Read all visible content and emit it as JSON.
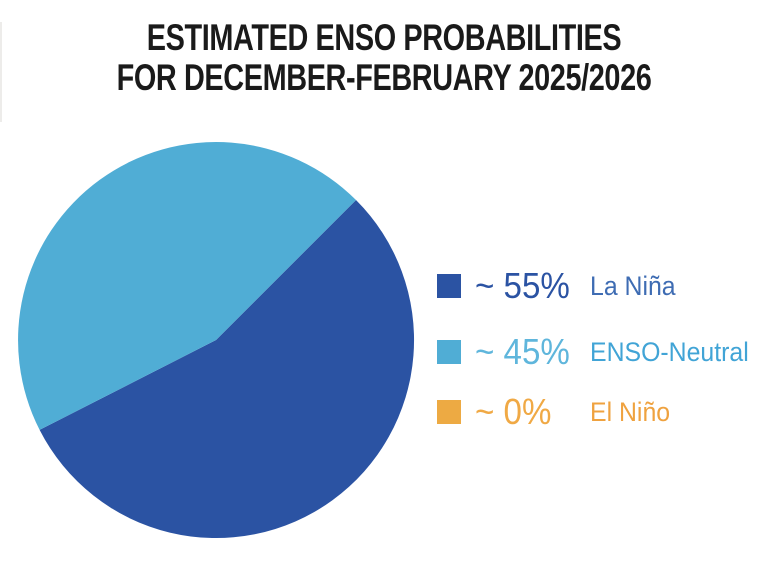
{
  "title": {
    "line1": "ESTIMATED ENSO PROBABILITIES",
    "line2": "FOR DECEMBER-FEBRUARY 2025/2026"
  },
  "chart_data": {
    "type": "pie",
    "title": "ESTIMATED ENSO PROBABILITIES FOR DECEMBER-FEBRUARY 2025/2026",
    "start_angle_deg": 45,
    "direction": "clockwise",
    "legend_position": "right",
    "slices": [
      {
        "id": "la-nina",
        "label": "La Niña",
        "value": 55,
        "display_value": "~ 55%",
        "color": "#2B53A3",
        "percent_color": "#2B53A3",
        "label_color": "#3E6CB3"
      },
      {
        "id": "enso-neutral",
        "label": "ENSO-Neutral",
        "value": 45,
        "display_value": "~ 45%",
        "color": "#50ADD5",
        "percent_color": "#5FB6DC",
        "label_color": "#41A4D6"
      },
      {
        "id": "el-nino",
        "label": "El Niño",
        "value": 0,
        "display_value": "~ 0%",
        "color": "#EDAA43",
        "percent_color": "#F0A945",
        "label_color": "#EFA23F"
      }
    ]
  }
}
